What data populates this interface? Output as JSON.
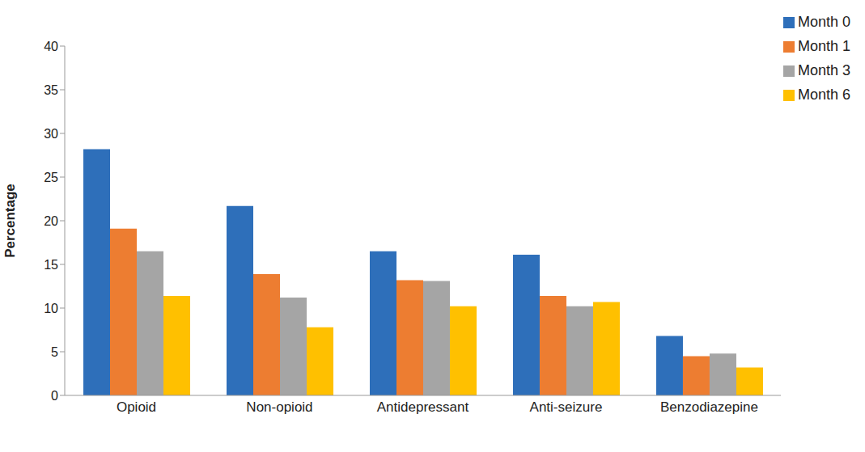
{
  "chart_data": {
    "type": "bar",
    "y_label": "Percentage",
    "categories": [
      "Opioid",
      "Non-opioid",
      "Antidepressant",
      "Anti-seizure",
      "Benzodiazepine"
    ],
    "series": [
      {
        "name": "Month 0",
        "color": "#2e6fba",
        "values": [
          28.2,
          21.7,
          16.5,
          16.1,
          6.8
        ]
      },
      {
        "name": "Month 1",
        "color": "#ed7d31",
        "values": [
          19.1,
          13.9,
          13.2,
          11.4,
          4.5
        ]
      },
      {
        "name": "Month 3",
        "color": "#a5a5a5",
        "values": [
          16.5,
          11.2,
          13.1,
          10.2,
          4.8
        ]
      },
      {
        "name": "Month 6",
        "color": "#ffc000",
        "values": [
          11.4,
          7.8,
          10.2,
          10.7,
          3.2
        ]
      }
    ],
    "ylim": [
      0,
      40
    ],
    "yticks": [
      0,
      5,
      10,
      15,
      20,
      25,
      30,
      35,
      40
    ],
    "grid": false,
    "legend": "upper right"
  }
}
